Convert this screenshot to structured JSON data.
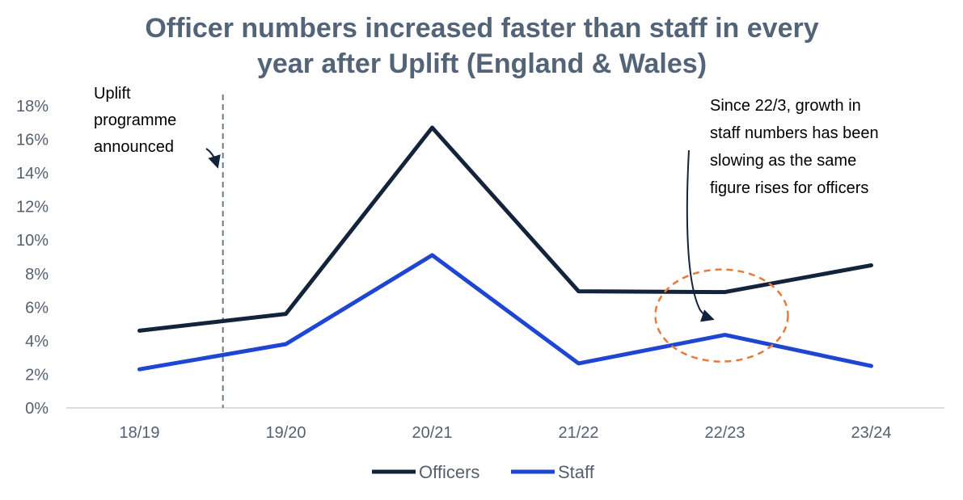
{
  "chart_data": {
    "type": "line",
    "title_lines": [
      "Officer numbers increased faster than staff in every",
      "year after Uplift (England & Wales)"
    ],
    "categories": [
      "18/19",
      "19/20",
      "20/21",
      "21/22",
      "22/23",
      "23/24"
    ],
    "y_ticks": [
      "0%",
      "2%",
      "4%",
      "6%",
      "8%",
      "10%",
      "12%",
      "14%",
      "16%",
      "18%"
    ],
    "ylim": [
      0,
      18
    ],
    "series": [
      {
        "name": "Officers",
        "color": "#14233c",
        "values": [
          4.6,
          5.6,
          16.7,
          6.95,
          6.9,
          8.5
        ]
      },
      {
        "name": "Staff",
        "color": "#1f45d3",
        "values": [
          2.3,
          3.8,
          9.1,
          2.65,
          4.35,
          2.5
        ]
      }
    ],
    "annotations": {
      "uplift": {
        "lines": [
          "Uplift",
          "programme",
          "announced"
        ],
        "marker_between": [
          "18/19",
          "19/20"
        ],
        "marker_fraction": 0.57
      },
      "since": {
        "lines": [
          "Since 22/3, growth in",
          "staff numbers has been",
          "slowing as the same",
          "figure rises for officers"
        ],
        "highlight_category": "22/23",
        "highlight_color": "#e87a3c"
      }
    },
    "legend_position": "bottom"
  }
}
